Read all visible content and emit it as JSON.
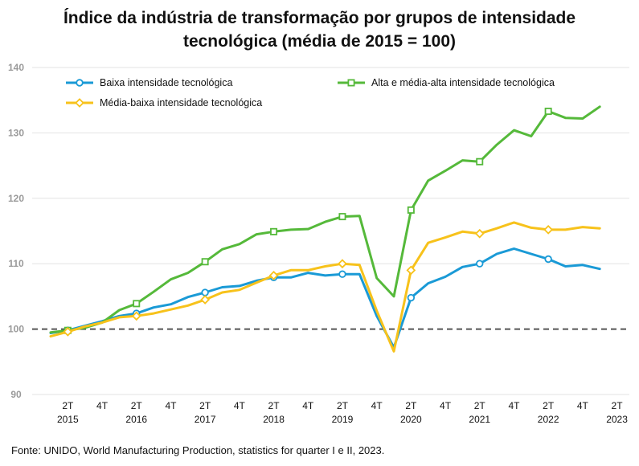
{
  "title_line1": "Índice da indústria de transformação por grupos de intensidade",
  "title_line2": "tecnológica (média de 2015 = 100)",
  "source": "Fonte: UNIDO, World Manufacturing Production, statistics for quarter I e II, 2023.",
  "chart_data": {
    "type": "line",
    "title": "Índice da indústria de transformação por grupos de intensidade tecnológica (média de 2015 = 100)",
    "ylim": [
      90,
      140
    ],
    "yticks": [
      90,
      100,
      110,
      120,
      130,
      140
    ],
    "reference_line": 100,
    "legend_position": "top",
    "x_tick_labels": [
      {
        "index": 1,
        "quarter": "2T",
        "year": "2015"
      },
      {
        "index": 3,
        "quarter": "4T",
        "year": ""
      },
      {
        "index": 5,
        "quarter": "2T",
        "year": "2016"
      },
      {
        "index": 7,
        "quarter": "4T",
        "year": ""
      },
      {
        "index": 9,
        "quarter": "2T",
        "year": "2017"
      },
      {
        "index": 11,
        "quarter": "4T",
        "year": ""
      },
      {
        "index": 13,
        "quarter": "2T",
        "year": "2018"
      },
      {
        "index": 15,
        "quarter": "4T",
        "year": ""
      },
      {
        "index": 17,
        "quarter": "2T",
        "year": "2019"
      },
      {
        "index": 19,
        "quarter": "4T",
        "year": ""
      },
      {
        "index": 21,
        "quarter": "2T",
        "year": "2020"
      },
      {
        "index": 23,
        "quarter": "4T",
        "year": ""
      },
      {
        "index": 25,
        "quarter": "2T",
        "year": "2021"
      },
      {
        "index": 27,
        "quarter": "4T",
        "year": ""
      },
      {
        "index": 29,
        "quarter": "2T",
        "year": "2022"
      },
      {
        "index": 31,
        "quarter": "4T",
        "year": ""
      },
      {
        "index": 33,
        "quarter": "2T",
        "year": "2023"
      }
    ],
    "marker_every": 4,
    "marker_offset": 1,
    "series": [
      {
        "name": "Baixa intensidade tecnológica",
        "color": "#1a9ad6",
        "marker": "circle",
        "values": [
          99.4,
          99.8,
          100.5,
          101.2,
          102.0,
          102.4,
          103.3,
          103.8,
          104.9,
          105.6,
          106.4,
          106.6,
          107.4,
          107.9,
          107.9,
          108.6,
          108.2,
          108.4,
          108.4,
          102.0,
          97.2,
          104.8,
          107.0,
          108.0,
          109.5,
          110.0,
          111.5,
          112.3,
          111.5,
          110.7,
          109.6,
          109.8,
          109.2
        ]
      },
      {
        "name": "Alta e média-alta intensidade tecnológica",
        "color": "#55b93a",
        "marker": "square",
        "values": [
          99.5,
          99.8,
          100.2,
          101.0,
          102.9,
          103.9,
          105.7,
          107.6,
          108.6,
          110.3,
          112.2,
          113.0,
          114.5,
          114.9,
          115.2,
          115.3,
          116.4,
          117.2,
          117.3,
          107.8,
          105.0,
          118.2,
          122.7,
          124.2,
          125.8,
          125.6,
          128.2,
          130.4,
          129.5,
          133.3,
          132.3,
          132.2,
          134.0
        ]
      },
      {
        "name": "Média-baixa intensidade tecnológica",
        "color": "#f7c21b",
        "marker": "diamond",
        "values": [
          98.9,
          99.6,
          100.4,
          101.0,
          101.8,
          102.0,
          102.4,
          103.0,
          103.6,
          104.5,
          105.6,
          106.0,
          107.1,
          108.2,
          109.0,
          109.0,
          109.6,
          110.0,
          109.8,
          102.8,
          96.6,
          109.0,
          113.2,
          114.0,
          114.9,
          114.6,
          115.4,
          116.3,
          115.5,
          115.2,
          115.2,
          115.6,
          115.4
        ]
      }
    ]
  }
}
